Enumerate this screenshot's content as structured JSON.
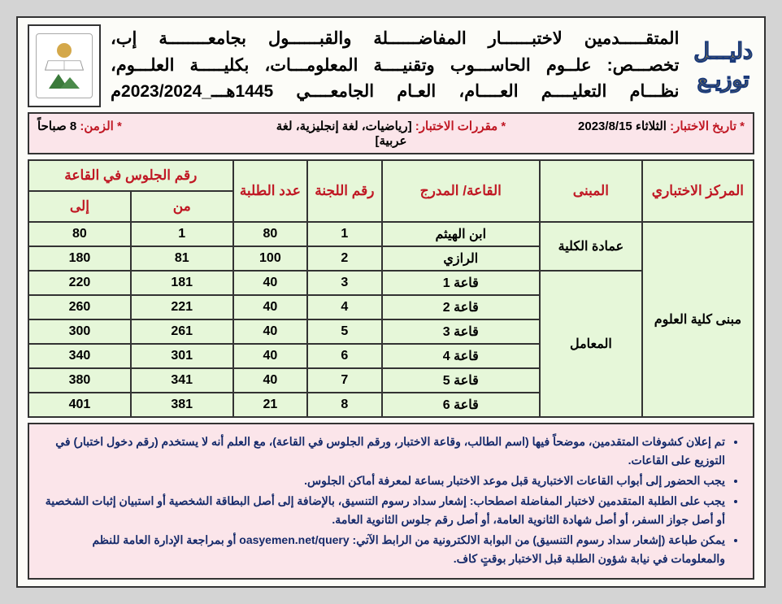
{
  "side_title": {
    "line1": "دليـــل",
    "line2": "توزيـع"
  },
  "header": {
    "line1": "المتقـــــدمين لاختبــــــار المفاضــــــلة والقبــــــول بجامعــــــــة إب،",
    "line2": "تخصـــص: علــوم الحاســـوب وتقنيــــة المعلومـــات، بكليـــــة العلـــوم،",
    "line3": "نظـــام التعليــــم العــــام، العـام الجامعــــي 1445هـــ_2023/2024م"
  },
  "info_bar": {
    "date_label": "* تاريخ الاختبار:",
    "date_value": "الثلاثاء 2023/8/15",
    "subjects_label": "* مقررات الاختبار:",
    "subjects_value": "[رياضيات، لغة إنجليزية، لغة عربية]",
    "time_label": "* الزمن:",
    "time_value": "8 صباحاً"
  },
  "table": {
    "headers": {
      "center": "المركز الاختباري",
      "building": "المبنى",
      "hall": "القاعة/ المدرج",
      "committee": "رقم اللجنة",
      "count": "عدد الطلبة",
      "seat_group": "رقم الجلوس في القاعة",
      "from": "من",
      "to": "إلى"
    },
    "center_value": "مبنى كلية العلوم",
    "buildings": [
      {
        "name": "عمادة الكلية",
        "rowspan": 2
      },
      {
        "name": "المعامل",
        "rowspan": 6
      }
    ],
    "rows": [
      {
        "hall": "ابن الهيثم",
        "committee": "1",
        "count": "80",
        "from": "1",
        "to": "80"
      },
      {
        "hall": "الرازي",
        "committee": "2",
        "count": "100",
        "from": "81",
        "to": "180"
      },
      {
        "hall": "قاعة 1",
        "committee": "3",
        "count": "40",
        "from": "181",
        "to": "220"
      },
      {
        "hall": "قاعة 2",
        "committee": "4",
        "count": "40",
        "from": "221",
        "to": "260"
      },
      {
        "hall": "قاعة 3",
        "committee": "5",
        "count": "40",
        "from": "261",
        "to": "300"
      },
      {
        "hall": "قاعة 4",
        "committee": "6",
        "count": "40",
        "from": "301",
        "to": "340"
      },
      {
        "hall": "قاعة 5",
        "committee": "7",
        "count": "40",
        "from": "341",
        "to": "380"
      },
      {
        "hall": "قاعة 6",
        "committee": "8",
        "count": "21",
        "from": "381",
        "to": "401"
      }
    ]
  },
  "notes": {
    "items": [
      "تم إعلان كشوفات المتقدمين، موضحاً فيها (اسم الطالب، وقاعة الاختبار، ورقم الجلوس في القاعة)، مع العلم أنه لا يستخدم (رقم دخول اختبار) في التوزيع على القاعات.",
      "يجب الحضور إلى أبواب القاعات الاختبارية قبل موعد الاختبار بساعة لمعرفة أماكن الجلوس.",
      "يجب على الطلبة المتقدمين لاختبار المفاضلة اصطحاب: إشعار سداد رسوم التنسيق، بالإضافة إلى أصل البطاقة الشخصية أو استبيان إثبات الشخصية أو أصل جواز السفر، أو أصل شهادة الثانوية العامة، أو أصل رقم جلوس الثانوية العامة.",
      "يمكن طباعة (إشعار سداد رسوم التنسيق) من البوابة الالكترونية من الرابط الآتي: oasyemen.net/query أو بمراجعة الإدارة العامة للنظم والمعلومات في نيابة شؤون الطلبة قبل الاختبار بوقتٍ كاف."
    ]
  },
  "colors": {
    "page_bg": "#fcfcf8",
    "outer_bg": "#d4d4d4",
    "pink_bg": "#fbe5ea",
    "green_bg": "#e6f7d9",
    "red_text": "#c01824",
    "note_text": "#152a6a",
    "border": "#333333",
    "side_fill": "#b8953a",
    "side_stroke": "#1a3a7a"
  }
}
